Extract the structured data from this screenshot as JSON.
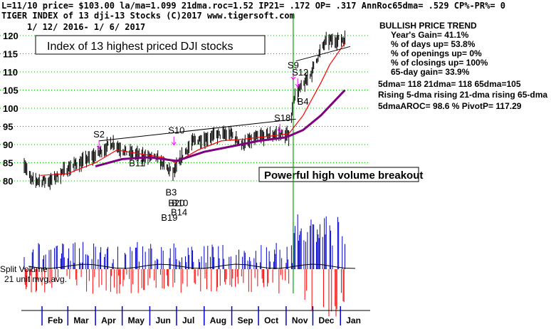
{
  "header": {
    "line1": "L=11/10  price= $103.00  la/ma=1.099 21dma.roc=1.52 IP21= .172 OP= .317 AnnRoc65dma= .529 CP%-PR%=  0",
    "line2": "TIGER INDEX of  13 dji-13 Stocks  (C)2017  www.tigersoft.com",
    "line3": "1/ 12/ 2016- 1/ 6/ 2017"
  },
  "box_title": "Index of 13 highest priced DJI stocks",
  "callout": "Powerful high volume breakout",
  "volume_labels": {
    "line1": "Split Volume",
    "line2": "21 unit mvg.avg."
  },
  "stats": {
    "title": "BULLISH PRICE TREND",
    "lines": [
      "Year's Gain= 41.1%",
      "% of days up= 53.8%",
      "% of openings up= 0%",
      "% of closings up= 100%",
      "65-day gain= 33.9%"
    ],
    "lines2": [
      "5dma= 118  21dma= 118  65dma=105",
      "Rising 5-dma  rising 21-dma  rising 65-dma",
      "5dmaAROC= 98.6 %  PivotP= 117.29"
    ]
  },
  "colors": {
    "price_bar": "#000000",
    "ma21": "#ff0000",
    "ma65": "#800080",
    "trendline": "#000000",
    "vol_up": "#0000cc",
    "vol_down": "#ff0000",
    "grid": "#00aa00",
    "breakout_line": "#00aa00",
    "signal_sell": "#ff00ff",
    "signal_buy": "#ff0000",
    "signal_blue": "#0000ff"
  },
  "chart_data": {
    "type": "ohlc",
    "title": "TIGER INDEX of 13 dji-13 Stocks",
    "date_range": [
      "2016-01-12",
      "2017-01-06"
    ],
    "ylim": [
      77,
      122
    ],
    "yticks": [
      80,
      85,
      90,
      95,
      100,
      105,
      110,
      115,
      120
    ],
    "months": [
      "Feb",
      "Mar",
      "Apr",
      "May",
      "Jun",
      "Jul",
      "Aug",
      "Sep",
      "Oct",
      "Nov",
      "Dec",
      "Jan"
    ],
    "grid": true,
    "price_points": [
      [
        "2016-01-12",
        85
      ],
      [
        "2016-01-20",
        80
      ],
      [
        "2016-02-11",
        80
      ],
      [
        "2016-03-01",
        83.5
      ],
      [
        "2016-04-01",
        87
      ],
      [
        "2016-04-20",
        90.5
      ],
      [
        "2016-05-05",
        88
      ],
      [
        "2016-05-20",
        87
      ],
      [
        "2016-06-10",
        86
      ],
      [
        "2016-06-27",
        82
      ],
      [
        "2016-07-08",
        87
      ],
      [
        "2016-07-20",
        91
      ],
      [
        "2016-08-15",
        92.5
      ],
      [
        "2016-08-31",
        93
      ],
      [
        "2016-09-12",
        90
      ],
      [
        "2016-09-30",
        92
      ],
      [
        "2016-10-25",
        93
      ],
      [
        "2016-11-04",
        92.5
      ],
      [
        "2016-11-10",
        103
      ],
      [
        "2016-11-22",
        107
      ],
      [
        "2016-11-30",
        110
      ],
      [
        "2016-12-08",
        115
      ],
      [
        "2016-12-16",
        118.5
      ],
      [
        "2017-01-06",
        119
      ]
    ],
    "ma21_points": [
      [
        "2016-01-30",
        81.5
      ],
      [
        "2016-03-01",
        82
      ],
      [
        "2016-04-01",
        85
      ],
      [
        "2016-04-25",
        88.5
      ],
      [
        "2016-05-20",
        87.5
      ],
      [
        "2016-06-15",
        86.5
      ],
      [
        "2016-06-30",
        85
      ],
      [
        "2016-07-25",
        88.5
      ],
      [
        "2016-08-20",
        91
      ],
      [
        "2016-09-15",
        91.5
      ],
      [
        "2016-10-20",
        92.5
      ],
      [
        "2016-11-04",
        93
      ],
      [
        "2016-11-20",
        98
      ],
      [
        "2016-12-10",
        107
      ],
      [
        "2016-12-20",
        112
      ],
      [
        "2017-01-06",
        118
      ]
    ],
    "ma65_points": [
      [
        "2016-04-01",
        84
      ],
      [
        "2016-05-01",
        86
      ],
      [
        "2016-06-01",
        86.5
      ],
      [
        "2016-07-01",
        85.5
      ],
      [
        "2016-08-01",
        88
      ],
      [
        "2016-09-01",
        89.5
      ],
      [
        "2016-10-01",
        91
      ],
      [
        "2016-11-01",
        92
      ],
      [
        "2016-11-20",
        94
      ],
      [
        "2016-12-10",
        98
      ],
      [
        "2017-01-06",
        105
      ]
    ],
    "trendlines": [
      {
        "from": [
          "2016-04-05",
          91
        ],
        "to": [
          "2016-11-12",
          97
        ]
      },
      {
        "from": [
          "2016-11-12",
          113
        ],
        "to": [
          "2017-01-12",
          117
        ]
      }
    ],
    "signals": [
      {
        "label": "S2",
        "date": "2016-04-05",
        "price": 92,
        "kind": "sell"
      },
      {
        "label": "S10",
        "date": "2016-06-28",
        "price": 93,
        "kind": "sell"
      },
      {
        "label": "S18",
        "date": "2016-10-25",
        "price": 96.5,
        "kind": "sell"
      },
      {
        "label": "S9",
        "date": "2016-11-09",
        "price": 111,
        "kind": "sell"
      },
      {
        "label": "S12",
        "date": "2016-11-14",
        "price": 109,
        "kind": "sell"
      },
      {
        "label": "B4",
        "date": "2016-11-20",
        "price": 101,
        "kind": "buy"
      },
      {
        "label": "B11",
        "date": "2016-05-15",
        "price": 84,
        "kind": "buy"
      },
      {
        "label": "B3",
        "date": "2016-06-25",
        "price": 76,
        "kind": "buy"
      },
      {
        "label": "B19",
        "date": "2016-06-20",
        "price": 69,
        "kind": "buy"
      },
      {
        "label": "B20",
        "date": "2016-06-28",
        "price": 73,
        "kind": "buy"
      },
      {
        "label": "B10",
        "date": "2016-07-02",
        "price": 73,
        "kind": "buy"
      },
      {
        "label": "B14",
        "date": "2016-07-01",
        "price": 70.5,
        "kind": "buy"
      }
    ],
    "volume": {
      "up_max_recent": "high",
      "breakout_date": "2016-11-09"
    }
  }
}
